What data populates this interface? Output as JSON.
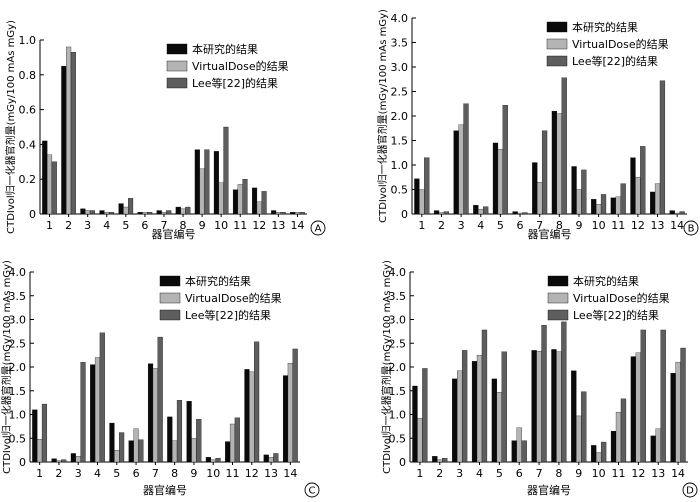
{
  "colors": {
    "series": [
      "#0a0a0a",
      "#b4b4b4",
      "#5e5e5e"
    ],
    "axis": "#000000"
  },
  "chart_data": [
    {
      "panel_label": "A",
      "type": "bar",
      "xlabel": "器官编号",
      "ylabel": "CTDIvol归一化器官剂量(mGy/100 mAs mGy)",
      "ylim": [
        0,
        1.0
      ],
      "yticks": [
        0.0,
        0.2,
        0.4,
        0.6,
        0.8,
        1.0
      ],
      "ytick_labels": [
        "0",
        "0.2",
        "0.4",
        "0.6",
        "0.8",
        "1.0"
      ],
      "categories": [
        "1",
        "2",
        "3",
        "4",
        "5",
        "6",
        "7",
        "8",
        "9",
        "10",
        "11",
        "12",
        "13",
        "14"
      ],
      "legend_position": "top-right",
      "series": [
        {
          "name": "本研究的结果",
          "values": [
            0.42,
            0.85,
            0.03,
            0.02,
            0.06,
            0.01,
            0.02,
            0.04,
            0.37,
            0.36,
            0.14,
            0.15,
            0.02,
            0.01
          ]
        },
        {
          "name": "VirtualDose的结果",
          "values": [
            0.34,
            0.96,
            0.02,
            0.01,
            0.04,
            0.01,
            0.01,
            0.03,
            0.26,
            0.18,
            0.17,
            0.07,
            0.01,
            0.01
          ]
        },
        {
          "name": "Lee等[22]的结果",
          "values": [
            0.3,
            0.93,
            0.02,
            0.01,
            0.09,
            0.01,
            0.02,
            0.04,
            0.37,
            0.5,
            0.2,
            0.13,
            0.01,
            0.01
          ]
        }
      ]
    },
    {
      "panel_label": "B",
      "type": "bar",
      "xlabel": "器官编号",
      "ylabel": "CTDIvol归一化器官剂量(mGy/100 mAs mGy)",
      "ylim": [
        0,
        4.0
      ],
      "yticks": [
        0,
        0.5,
        1.0,
        1.5,
        2.0,
        2.5,
        3.0,
        3.5,
        4.0
      ],
      "ytick_labels": [
        "0",
        "0.5",
        "1.0",
        "1.5",
        "2.0",
        "2.5",
        "3.0",
        "3.5",
        "4.0"
      ],
      "categories": [
        "1",
        "2",
        "3",
        "4",
        "5",
        "6",
        "7",
        "8",
        "9",
        "10",
        "11",
        "12",
        "13",
        "14"
      ],
      "legend_position": "top-right",
      "series": [
        {
          "name": "本研究的结果",
          "values": [
            0.72,
            0.07,
            1.7,
            0.18,
            1.45,
            0.05,
            1.05,
            2.1,
            0.97,
            0.3,
            0.33,
            1.15,
            0.45,
            0.07
          ]
        },
        {
          "name": "VirtualDose的结果",
          "values": [
            0.5,
            0.03,
            1.82,
            0.1,
            1.32,
            0.02,
            0.65,
            2.05,
            0.5,
            0.2,
            0.35,
            0.75,
            0.62,
            0.02
          ]
        },
        {
          "name": "Lee等[22]的结果",
          "values": [
            1.15,
            0.05,
            2.25,
            0.15,
            2.22,
            0.03,
            1.7,
            2.78,
            0.9,
            0.4,
            0.62,
            1.38,
            2.72,
            0.05
          ]
        }
      ]
    },
    {
      "panel_label": "C",
      "type": "bar",
      "xlabel": "器官编号",
      "ylabel": "CTDIvol归一化器官剂量(mGy/100 mAs mGy)",
      "ylim": [
        0,
        4.0
      ],
      "yticks": [
        0,
        0.5,
        1.0,
        1.5,
        2.0,
        2.5,
        3.0,
        3.5,
        4.0
      ],
      "ytick_labels": [
        "0",
        "0.5",
        "1.0",
        "1.5",
        "2.0",
        "2.5",
        "3.0",
        "3.5",
        "4.0"
      ],
      "categories": [
        "1",
        "2",
        "3",
        "4",
        "5",
        "6",
        "7",
        "8",
        "9",
        "10",
        "11",
        "12",
        "13",
        "14"
      ],
      "legend_position": "top-right",
      "series": [
        {
          "name": "本研究的结果",
          "values": [
            1.1,
            0.07,
            0.18,
            2.05,
            0.82,
            0.45,
            2.07,
            0.95,
            1.28,
            0.1,
            0.43,
            1.95,
            0.15,
            1.82
          ]
        },
        {
          "name": "VirtualDose的结果",
          "values": [
            0.48,
            0.03,
            0.12,
            2.2,
            0.25,
            0.7,
            1.97,
            0.45,
            0.5,
            0.05,
            0.8,
            1.9,
            0.1,
            2.08
          ]
        },
        {
          "name": "Lee等[22]的结果",
          "values": [
            1.22,
            0.05,
            2.1,
            2.72,
            0.62,
            0.47,
            2.63,
            1.3,
            0.9,
            0.08,
            0.93,
            2.53,
            0.18,
            2.38
          ]
        }
      ]
    },
    {
      "panel_label": "D",
      "type": "bar",
      "xlabel": "器官编号",
      "ylabel": "CTDIvol归一化器官剂量(mGy/100 mAs mGy)",
      "ylim": [
        0,
        4.0
      ],
      "yticks": [
        0,
        0.5,
        1.0,
        1.5,
        2.0,
        2.5,
        3.0,
        3.5,
        4.0
      ],
      "ytick_labels": [
        "0",
        "0.5",
        "1.0",
        "1.5",
        "2.0",
        "2.5",
        "3.0",
        "3.5",
        "4.0"
      ],
      "categories": [
        "1",
        "2",
        "3",
        "4",
        "5",
        "6",
        "7",
        "8",
        "9",
        "10",
        "11",
        "12",
        "13",
        "14"
      ],
      "legend_position": "top-right",
      "series": [
        {
          "name": "本研究的结果",
          "values": [
            1.6,
            0.12,
            1.75,
            2.12,
            1.75,
            0.45,
            2.35,
            2.37,
            1.92,
            0.35,
            0.65,
            2.22,
            0.55,
            1.87
          ]
        },
        {
          "name": "VirtualDose的结果",
          "values": [
            0.92,
            0.05,
            1.92,
            2.25,
            1.47,
            0.72,
            2.33,
            2.32,
            0.97,
            0.2,
            1.05,
            2.3,
            0.7,
            2.1
          ]
        },
        {
          "name": "Lee等[22]的结果",
          "values": [
            1.97,
            0.08,
            2.35,
            2.78,
            2.32,
            0.45,
            2.88,
            2.95,
            1.48,
            0.42,
            1.33,
            2.78,
            2.78,
            2.4
          ]
        }
      ]
    }
  ]
}
